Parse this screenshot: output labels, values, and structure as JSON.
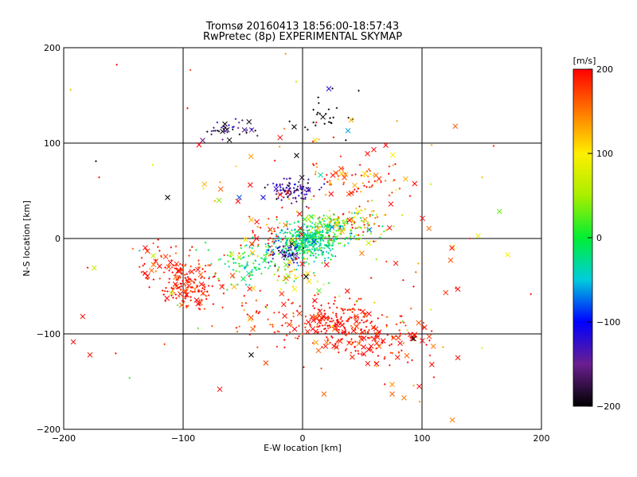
{
  "chart_data": {
    "type": "scatter",
    "title": "Tromsø 20160413 18:56:00-18:57:43",
    "subtitle": "RwPretec (8p) EXPERIMENTAL SKYMAP",
    "xlabel": "E-W location [km]",
    "ylabel": "N-S location [km]",
    "xlim": [
      -200,
      200
    ],
    "ylim": [
      -200,
      200
    ],
    "xticks": [
      -200,
      -100,
      0,
      100,
      200
    ],
    "yticks": [
      -200,
      -100,
      0,
      100,
      200
    ],
    "grid": true,
    "colorbar": {
      "label": "[m/s]",
      "range": [
        -200,
        200
      ],
      "ticks": [
        200,
        100,
        0,
        -100,
        -200
      ]
    },
    "clusters": [
      {
        "x": 5,
        "y": -3,
        "rx": 12,
        "ry": 9,
        "v": -20,
        "vs": 25,
        "n": 380,
        "cross": 0.03
      },
      {
        "x": 28,
        "y": 10,
        "rx": 18,
        "ry": 8,
        "v": 10,
        "vs": 40,
        "n": 120,
        "cross": 0.05
      },
      {
        "x": 45,
        "y": 20,
        "rx": 15,
        "ry": 10,
        "v": 140,
        "vs": 50,
        "n": 60,
        "cross": 0.1
      },
      {
        "x": -40,
        "y": -25,
        "rx": 18,
        "ry": 10,
        "v": -10,
        "vs": 30,
        "n": 110,
        "cross": 0.06
      },
      {
        "x": -17,
        "y": -15,
        "rx": 8,
        "ry": 6,
        "v": -140,
        "vs": 30,
        "n": 60,
        "cross": 0.05
      },
      {
        "x": -8,
        "y": 51,
        "rx": 10,
        "ry": 6,
        "v": -150,
        "vs": 25,
        "n": 100,
        "cross": 0.05
      },
      {
        "x": -30,
        "y": 5,
        "rx": 15,
        "ry": 10,
        "v": 170,
        "vs": 40,
        "n": 40,
        "cross": 0.2
      },
      {
        "x": 45,
        "y": 60,
        "rx": 20,
        "ry": 10,
        "v": 170,
        "vs": 35,
        "n": 70,
        "cross": 0.15
      },
      {
        "x": -95,
        "y": -50,
        "rx": 12,
        "ry": 10,
        "v": 190,
        "vs": 20,
        "n": 150,
        "cross": 0.15
      },
      {
        "x": -110,
        "y": -25,
        "rx": 15,
        "ry": 12,
        "v": 185,
        "vs": 25,
        "n": 60,
        "cross": 0.2
      },
      {
        "x": 30,
        "y": -85,
        "rx": 15,
        "ry": 10,
        "v": 195,
        "vs": 15,
        "n": 140,
        "cross": 0.15
      },
      {
        "x": 60,
        "y": -105,
        "rx": 25,
        "ry": 15,
        "v": 190,
        "vs": 20,
        "n": 140,
        "cross": 0.3
      },
      {
        "x": -10,
        "y": -85,
        "rx": 25,
        "ry": 15,
        "v": 190,
        "vs": 20,
        "n": 80,
        "cross": 0.25
      },
      {
        "x": 20,
        "y": 15,
        "rx": 8,
        "ry": 6,
        "v": 30,
        "vs": 40,
        "n": 50,
        "cross": 0.1
      },
      {
        "x": -60,
        "y": 115,
        "rx": 12,
        "ry": 5,
        "v": -170,
        "vs": 40,
        "n": 40,
        "cross": 0.2
      },
      {
        "x": 20,
        "y": 130,
        "rx": 12,
        "ry": 12,
        "v": -200,
        "vs": 5,
        "n": 25,
        "cross": 0.15
      },
      {
        "x": -5,
        "y": -35,
        "rx": 10,
        "ry": 10,
        "v": 110,
        "vs": 60,
        "n": 30,
        "cross": 0.1
      },
      {
        "x": 0,
        "y": 0,
        "rx": 90,
        "ry": 80,
        "v": 150,
        "vs": 80,
        "n": 160,
        "cross": 0.35
      }
    ],
    "notable_points": [
      {
        "x": 22,
        "y": 157,
        "v": -120,
        "m": "x"
      },
      {
        "x": 47,
        "y": 155,
        "v": -200,
        "m": "+"
      },
      {
        "x": -65,
        "y": 120,
        "v": -200,
        "m": "x"
      },
      {
        "x": -7,
        "y": 117,
        "v": -200,
        "m": "x"
      },
      {
        "x": 38,
        "y": 113,
        "v": -60,
        "m": "x"
      },
      {
        "x": -5,
        "y": 87,
        "v": -200,
        "m": "x"
      },
      {
        "x": 108,
        "y": 98,
        "v": 130,
        "m": "+"
      },
      {
        "x": 160,
        "y": 97,
        "v": 190,
        "m": "+"
      },
      {
        "x": -173,
        "y": 81,
        "v": -200,
        "m": "+"
      },
      {
        "x": -113,
        "y": 43,
        "v": -200,
        "m": "x"
      },
      {
        "x": -53,
        "y": 43,
        "v": -80,
        "m": "x"
      },
      {
        "x": -33,
        "y": 43,
        "v": -110,
        "m": "x"
      },
      {
        "x": -70,
        "y": 40,
        "v": 40,
        "m": "x"
      },
      {
        "x": -125,
        "y": -18,
        "v": 60,
        "m": "x"
      },
      {
        "x": 93,
        "y": -105,
        "v": -200,
        "m": "x"
      },
      {
        "x": -43,
        "y": -122,
        "v": -200,
        "m": "x"
      },
      {
        "x": 75,
        "y": -153,
        "v": 140,
        "m": "x"
      },
      {
        "x": 75,
        "y": -163,
        "v": 160,
        "m": "x"
      },
      {
        "x": 85,
        "y": -167,
        "v": 150,
        "m": "x"
      },
      {
        "x": 98,
        "y": -171,
        "v": 140,
        "m": "+"
      },
      {
        "x": 125,
        "y": -10,
        "v": 195,
        "m": "x"
      },
      {
        "x": 130,
        "y": -53,
        "v": 195,
        "m": "x"
      },
      {
        "x": 130,
        "y": -125,
        "v": 195,
        "m": "x"
      },
      {
        "x": 140,
        "y": 0,
        "v": 195,
        "m": "+"
      },
      {
        "x": -178,
        "y": -122,
        "v": 190,
        "m": "x"
      },
      {
        "x": 3,
        "y": -40,
        "v": -200,
        "m": "x"
      },
      {
        "x": 78,
        "y": -26,
        "v": 195,
        "m": "x"
      }
    ]
  },
  "colors": {
    "axis": "#000000",
    "background": "#ffffff"
  }
}
